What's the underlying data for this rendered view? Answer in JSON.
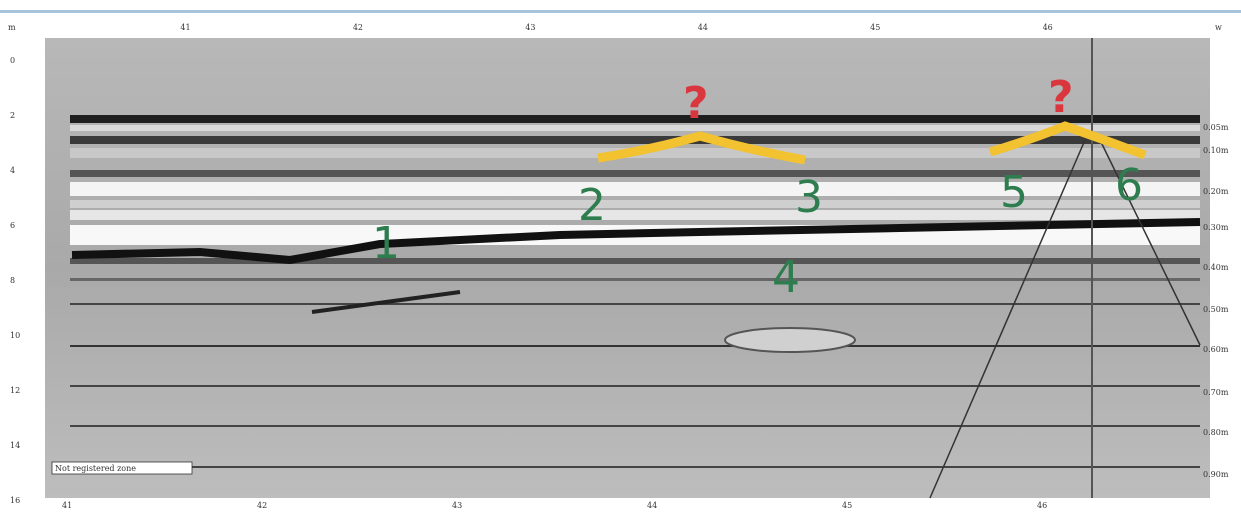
{
  "radargram": {
    "top_axis": [
      "m",
      "41",
      "42",
      "43",
      "44",
      "45",
      "46",
      "w"
    ],
    "bottom_axis": [
      "41",
      "42",
      "43",
      "44",
      "45",
      "46"
    ],
    "depth_labels": [
      "0",
      "2",
      "4",
      "6",
      "8",
      "10",
      "12",
      "14",
      "16"
    ],
    "time_labels": [
      "0.05m",
      "0.10m",
      "0.20m",
      "0.30m",
      "0.40m",
      "0.50m",
      "0.60m",
      "0.70m",
      "0.80m",
      "0.90m"
    ],
    "zone_note": "Not registered zone",
    "question_marks": [
      "?",
      "?"
    ],
    "markers": [
      "1",
      "2",
      "3",
      "4",
      "5",
      "6"
    ]
  }
}
